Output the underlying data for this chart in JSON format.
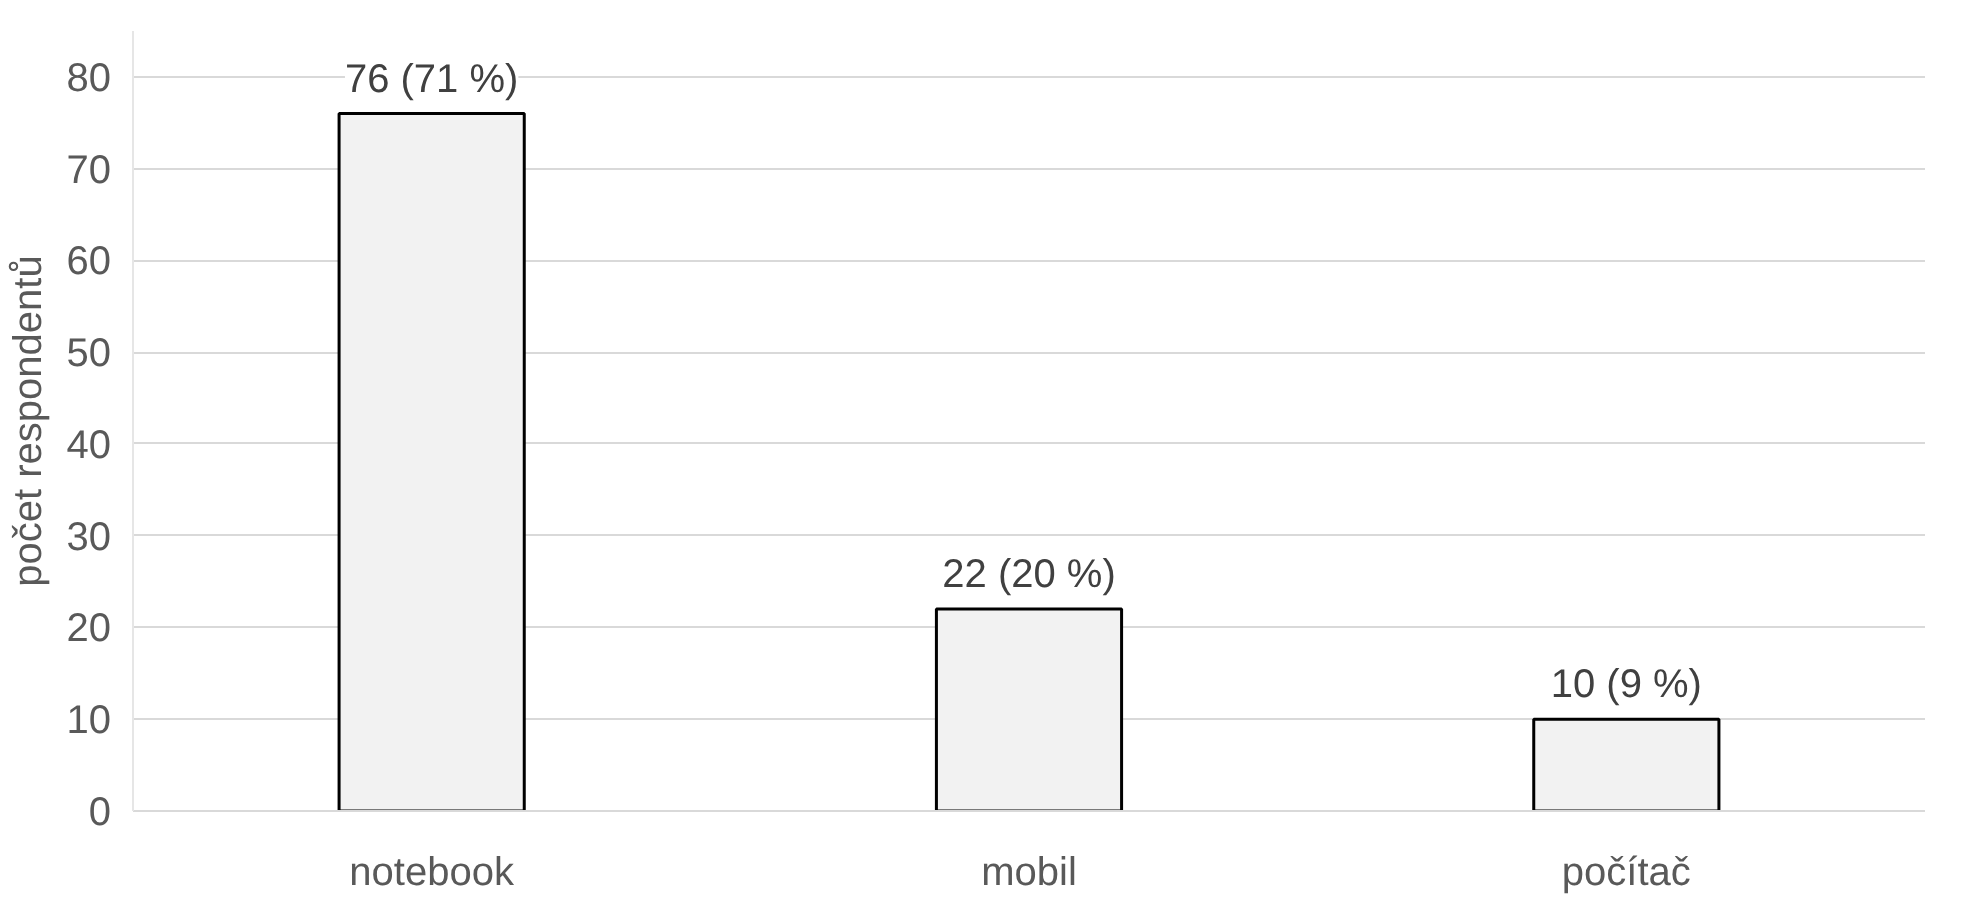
{
  "chart_data": {
    "type": "bar",
    "ylabel": "počet respondentů",
    "categories": [
      "notebook",
      "mobil",
      "počítač"
    ],
    "values": [
      76,
      22,
      10
    ],
    "value_labels": [
      "76 (71 %)",
      "22 (20 %)",
      "10 (9 %)"
    ],
    "color": "#f2f2f2",
    "ylim": [
      0,
      85
    ],
    "yticks": [
      0,
      10,
      20,
      30,
      40,
      50,
      60,
      70,
      80
    ],
    "grid": "y"
  }
}
